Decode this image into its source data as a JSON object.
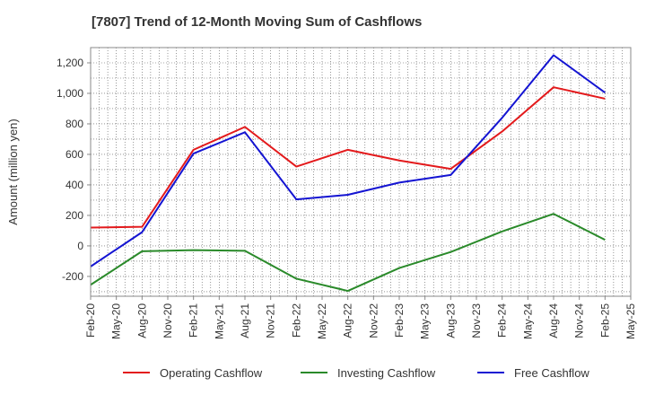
{
  "chart_data": {
    "type": "line",
    "title": "[7807]  Trend of 12-Month Moving Sum of Cashflows",
    "ylabel": "Amount (million yen)",
    "xlabel": "",
    "x_ticks": [
      "Feb-20",
      "May-20",
      "Aug-20",
      "Nov-20",
      "Feb-21",
      "May-21",
      "Aug-21",
      "Nov-21",
      "Feb-22",
      "May-22",
      "Aug-22",
      "Nov-22",
      "Feb-23",
      "May-23",
      "Aug-23",
      "Nov-23",
      "Feb-24",
      "May-24",
      "Aug-24",
      "Nov-24",
      "Feb-25",
      "May-25"
    ],
    "y_ticks": [
      -200,
      0,
      200,
      400,
      600,
      800,
      1000,
      1200
    ],
    "y_tick_labels": [
      "-200",
      "0",
      "200",
      "400",
      "600",
      "800",
      "1,000",
      "1,200"
    ],
    "ylim": [
      -330,
      1300
    ],
    "grid": true,
    "legend_position": "bottom",
    "x": [
      "Feb-20",
      "Aug-20",
      "Feb-21",
      "Aug-21",
      "Feb-22",
      "Aug-22",
      "Feb-23",
      "Aug-23",
      "Feb-24",
      "Aug-24",
      "Feb-25"
    ],
    "series": [
      {
        "name": "Operating Cashflow",
        "color": "#e31a1c",
        "values": [
          120,
          125,
          630,
          780,
          520,
          630,
          560,
          505,
          750,
          1040,
          965
        ]
      },
      {
        "name": "Investing Cashflow",
        "color": "#2a8a2a",
        "values": [
          -255,
          -35,
          -28,
          -32,
          -215,
          -295,
          -145,
          -40,
          95,
          210,
          40
        ]
      },
      {
        "name": "Free Cashflow",
        "color": "#1414d2",
        "values": [
          -135,
          90,
          605,
          745,
          305,
          335,
          415,
          465,
          840,
          1250,
          1005
        ]
      }
    ]
  }
}
